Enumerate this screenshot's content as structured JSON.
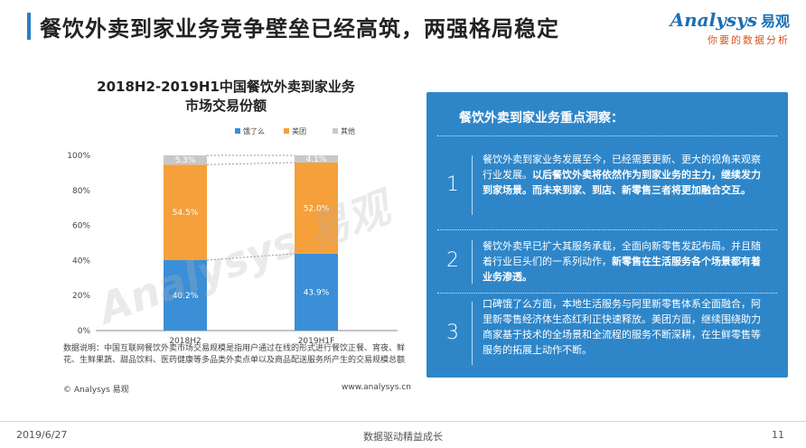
{
  "header": {
    "title": "餐饮外卖到家业务竞争壁垒已经高筑，两强格局稳定",
    "logo_main": "Analysys",
    "logo_cn": "易观",
    "logo_sub": "你要的数据分析"
  },
  "chart_data": {
    "type": "bar",
    "stacked": true,
    "title_line1": "2018H2-2019H1中国餐饮外卖到家业务",
    "title_line2": "市场交易份额",
    "categories": [
      "2018H2",
      "2019H1F"
    ],
    "series": [
      {
        "name": "饿了么",
        "values": [
          40.2,
          43.9
        ],
        "labels": [
          "40.2%",
          "43.9%"
        ],
        "color": "#3a8fd6"
      },
      {
        "name": "美团",
        "values": [
          54.5,
          52.0
        ],
        "labels": [
          "54.5%",
          "52.0%"
        ],
        "color": "#f5a03a"
      },
      {
        "name": "其他",
        "values": [
          5.3,
          4.1
        ],
        "labels": [
          "5.3%",
          "4.1%"
        ],
        "color": "#c8c8c8"
      }
    ],
    "ylim": [
      0,
      100
    ],
    "yticks": [
      "0%",
      "20%",
      "40%",
      "60%",
      "80%",
      "100%"
    ],
    "legend_position": "top-right",
    "grid": false
  },
  "source_note": "数据说明：中国互联网餐饮外卖市场交易规模是指用户通过在线的形式进行餐饮正餐、宵夜、鲜花、生鲜果蔬、甜品饮料、医药健康等多品类外卖点单以及商品配送服务所产生的交易规模总额",
  "copyright": "© Analysys 易观",
  "website": "www.analysys.cn",
  "insight": {
    "title": "餐饮外卖到家业务重点洞察：",
    "items": [
      {
        "num": "1",
        "text_a": "餐饮外卖到家业务发展至今，已经需要更新、更大的视角来观察行业发展。",
        "text_b": "以后餐饮外卖将依然作为到家业务的主力，继续发力到家场景。而未来到家、到店、新零售三者将更加融合交互。"
      },
      {
        "num": "2",
        "text_a": "餐饮外卖早已扩大其服务承载，全面向新零售发起布局。并且随着行业巨头们的一系列动作，",
        "text_b": "新零售在生活服务各个场景都有着业务渗透。"
      },
      {
        "num": "3",
        "text_a": "口碑饿了么方面，本地生活服务与阿里新零售体系全面融合，阿里新零售经济体生态红利正快速释放。美团方面，继续围绕助力商家基于技术的全场景和全流程的服务不断深耕，在生鲜零售等服务的拓展上动作不断。",
        "text_b": ""
      }
    ]
  },
  "footer": {
    "date": "2019/6/27",
    "center": "数据驱动精益成长",
    "page": "11"
  }
}
